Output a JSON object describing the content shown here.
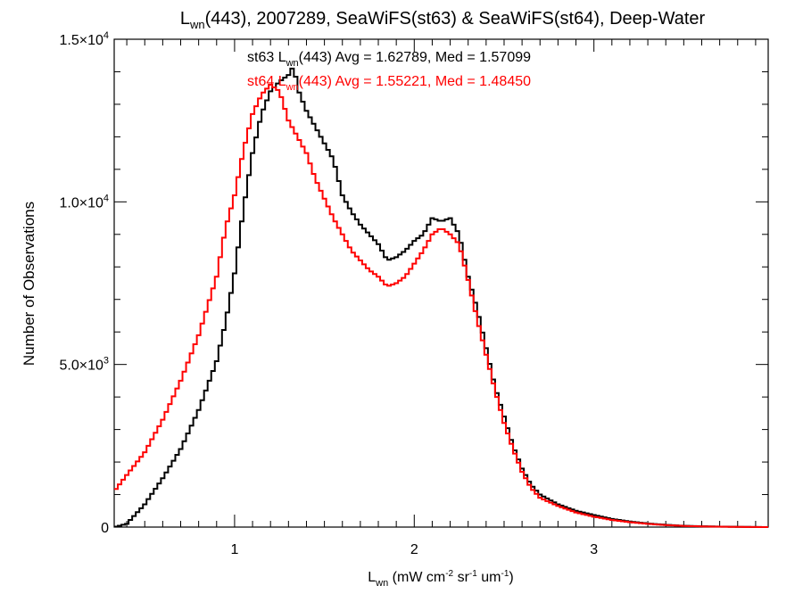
{
  "chart_data": {
    "type": "line",
    "title": {
      "main": "L",
      "sub": "wn",
      "rest": "(443), 2007289, SeaWiFS(st63) & SeaWiFS(st64), Deep-Water"
    },
    "xlabel": {
      "main": "L",
      "sub": "wn",
      "p1": " (mW cm",
      "s1": "-2",
      "p2": " sr",
      "s2": "-1",
      "p3": " um",
      "s3": "-1",
      "p4": ")"
    },
    "ylabel": "Number of Observations",
    "xlim": [
      0.33,
      3.97
    ],
    "ylim": [
      0,
      15000
    ],
    "x_ticks": [
      {
        "value": 1,
        "label": "1"
      },
      {
        "value": 2,
        "label": "2"
      },
      {
        "value": 3,
        "label": "3"
      }
    ],
    "y_ticks": [
      {
        "value": 0,
        "mant": "0",
        "exp": ""
      },
      {
        "value": 5000,
        "mant": "5.0×10",
        "exp": "3"
      },
      {
        "value": 10000,
        "mant": "1.0×10",
        "exp": "4"
      },
      {
        "value": 15000,
        "mant": "1.5×10",
        "exp": "4"
      }
    ],
    "stats": [
      {
        "pre": "st63 L",
        "sub": "wn",
        "post": "(443) Avg = 1.62789, Med = 1.57099",
        "color": "#000000"
      },
      {
        "pre": "st64 L",
        "sub": "wn",
        "post": "(443) Avg = 1.55221, Med = 1.48450",
        "color": "#ff0000"
      }
    ],
    "series": [
      {
        "color": "#000000",
        "x": [
          0.33,
          0.4,
          0.5,
          0.6,
          0.7,
          0.8,
          0.9,
          0.95,
          1.0,
          1.05,
          1.1,
          1.15,
          1.2,
          1.25,
          1.3,
          1.33,
          1.35,
          1.4,
          1.45,
          1.5,
          1.55,
          1.6,
          1.65,
          1.7,
          1.75,
          1.8,
          1.85,
          1.9,
          1.95,
          2.0,
          2.05,
          2.1,
          2.15,
          2.2,
          2.25,
          2.3,
          2.35,
          2.4,
          2.45,
          2.5,
          2.55,
          2.6,
          2.65,
          2.7,
          2.8,
          2.9,
          3.0,
          3.1,
          3.2,
          3.3,
          3.4,
          3.5,
          3.6,
          3.7,
          3.8,
          3.97
        ],
        "values": [
          0,
          100,
          700,
          1500,
          2400,
          3600,
          5100,
          6300,
          7800,
          9800,
          11500,
          12700,
          13400,
          13700,
          13900,
          14200,
          13500,
          12800,
          12300,
          11800,
          11300,
          10200,
          9700,
          9300,
          9000,
          8700,
          8200,
          8300,
          8500,
          8800,
          9000,
          9500,
          9400,
          9500,
          9000,
          7700,
          6700,
          5500,
          4300,
          3400,
          2500,
          1800,
          1300,
          1000,
          700,
          500,
          370,
          250,
          170,
          110,
          70,
          40,
          25,
          15,
          8,
          0
        ]
      },
      {
        "color": "#ff0000",
        "x": [
          0.33,
          0.4,
          0.5,
          0.6,
          0.7,
          0.8,
          0.9,
          0.95,
          1.0,
          1.05,
          1.1,
          1.15,
          1.2,
          1.25,
          1.3,
          1.35,
          1.4,
          1.45,
          1.5,
          1.55,
          1.6,
          1.65,
          1.7,
          1.75,
          1.8,
          1.85,
          1.9,
          1.95,
          2.0,
          2.05,
          2.1,
          2.15,
          2.2,
          2.25,
          2.3,
          2.35,
          2.4,
          2.45,
          2.5,
          2.55,
          2.6,
          2.65,
          2.7,
          2.8,
          2.9,
          3.0,
          3.1,
          3.2,
          3.3,
          3.4,
          3.5,
          3.6,
          3.7,
          3.8,
          3.97
        ],
        "values": [
          1100,
          1600,
          2300,
          3300,
          4500,
          5900,
          7700,
          9200,
          10200,
          11600,
          12700,
          13300,
          13600,
          13400,
          12500,
          12000,
          11500,
          10700,
          10100,
          9500,
          9000,
          8500,
          8200,
          7900,
          7700,
          7400,
          7500,
          7700,
          8100,
          8500,
          9000,
          9200,
          9000,
          8700,
          7600,
          6400,
          5300,
          4200,
          3200,
          2400,
          1700,
          1200,
          900,
          650,
          450,
          320,
          220,
          150,
          100,
          60,
          35,
          20,
          12,
          6,
          0
        ]
      }
    ]
  }
}
